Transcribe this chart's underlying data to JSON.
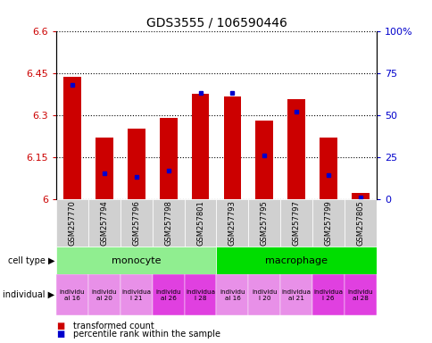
{
  "title": "GDS3555 / 106590446",
  "samples": [
    "GSM257770",
    "GSM257794",
    "GSM257796",
    "GSM257798",
    "GSM257801",
    "GSM257793",
    "GSM257795",
    "GSM257797",
    "GSM257799",
    "GSM257805"
  ],
  "transformed_counts": [
    6.435,
    6.22,
    6.25,
    6.29,
    6.375,
    6.365,
    6.28,
    6.355,
    6.22,
    6.02
  ],
  "percentile_ranks": [
    68,
    15,
    13,
    17,
    63,
    63,
    26,
    52,
    14,
    1
  ],
  "ylim_left": [
    6.0,
    6.6
  ],
  "ylim_right": [
    0,
    100
  ],
  "yticks_left": [
    6.0,
    6.15,
    6.3,
    6.45,
    6.6
  ],
  "yticks_right": [
    0,
    25,
    50,
    75,
    100
  ],
  "ytick_labels_left": [
    "6",
    "6.15",
    "6.3",
    "6.45",
    "6.6"
  ],
  "ytick_labels_right": [
    "0",
    "25",
    "50",
    "75",
    "100%"
  ],
  "cell_type_color_mono": "#90ee90",
  "cell_type_color_macro": "#00dd00",
  "bar_color_red": "#cc0000",
  "bar_color_blue": "#0000cc",
  "base_value": 6.0,
  "bar_width": 0.55,
  "legend_red": "transformed count",
  "legend_blue": "percentile rank within the sample",
  "ylabel_left_color": "#cc0000",
  "ylabel_right_color": "#0000cc",
  "sample_bg_color": "#d0d0d0",
  "ind_labels": [
    "individu\nal 16",
    "individu\nal 20",
    "individua\nl 21",
    "individu\nal 26",
    "individua\nl 28",
    "individu\nal 16",
    "individu\nl 20",
    "individua\nal 21",
    "individua\nl 26",
    "individu\nal 28"
  ],
  "ind_colors": [
    "#e890e8",
    "#e890e8",
    "#e890e8",
    "#e040e0",
    "#e040e0",
    "#e890e8",
    "#e890e8",
    "#e890e8",
    "#e040e0",
    "#e040e0"
  ]
}
